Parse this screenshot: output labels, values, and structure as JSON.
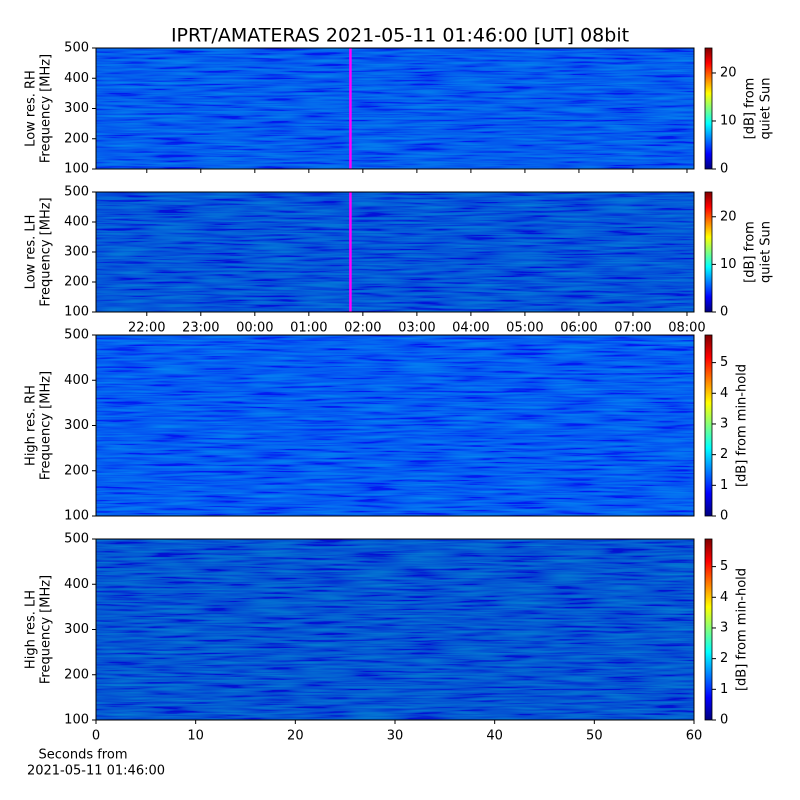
{
  "chart_data": [
    {
      "type": "heatmap",
      "title": "IPRT/AMATERAS 2021-05-11 01:46:00 [UT]   08bit",
      "ylabel": [
        "Low res. RH",
        "Frequency [MHz]"
      ],
      "ylim": [
        100,
        500
      ],
      "yticks": [
        100,
        200,
        300,
        400,
        500
      ],
      "xlim": [
        21.06,
        32.13
      ],
      "xticks": [
        {
          "value": 22,
          "label": "22:00"
        },
        {
          "value": 23,
          "label": "23:00"
        },
        {
          "value": 24,
          "label": "00:00"
        },
        {
          "value": 25,
          "label": "01:00"
        },
        {
          "value": 26,
          "label": "02:00"
        },
        {
          "value": 27,
          "label": "03:00"
        },
        {
          "value": 28,
          "label": "04:00"
        },
        {
          "value": 29,
          "label": "05:00"
        },
        {
          "value": 30,
          "label": "06:00"
        },
        {
          "value": 31,
          "label": "07:00"
        },
        {
          "value": 32,
          "label": "08:00"
        }
      ],
      "show_xtick_labels": false,
      "color": "#0a3ad8",
      "marker": {
        "value": 25.77,
        "color": "#ff00ff"
      },
      "colorbar": {
        "label": [
          "[dB] from",
          "quiet Sun"
        ],
        "lim": [
          0,
          25.2
        ],
        "ticks": [
          0,
          10,
          20
        ]
      },
      "colormap": [
        "#00007f",
        "#0000ff",
        "#007fff",
        "#00ffff",
        "#7fff7f",
        "#ffff00",
        "#ff7f00",
        "#ff0000",
        "#7f0000"
      ]
    },
    {
      "type": "heatmap",
      "ylabel": [
        "Low res. LH",
        "Frequency [MHz]"
      ],
      "ylim": [
        100,
        500
      ],
      "yticks": [
        100,
        200,
        300,
        400,
        500
      ],
      "xlim": [
        21.06,
        32.13
      ],
      "xticks": [
        {
          "value": 22,
          "label": "22:00"
        },
        {
          "value": 23,
          "label": "23:00"
        },
        {
          "value": 24,
          "label": "00:00"
        },
        {
          "value": 25,
          "label": "01:00"
        },
        {
          "value": 26,
          "label": "02:00"
        },
        {
          "value": 27,
          "label": "03:00"
        },
        {
          "value": 28,
          "label": "04:00"
        },
        {
          "value": 29,
          "label": "05:00"
        },
        {
          "value": 30,
          "label": "06:00"
        },
        {
          "value": 31,
          "label": "07:00"
        },
        {
          "value": 32,
          "label": "08:00"
        }
      ],
      "show_xtick_labels": true,
      "color": "#0a2aa8",
      "marker": {
        "value": 25.77,
        "color": "#ff00ff"
      },
      "colorbar": {
        "label": [
          "[dB] from",
          "quiet Sun"
        ],
        "lim": [
          0,
          25.2
        ],
        "ticks": [
          0,
          10,
          20
        ]
      },
      "colormap": [
        "#00007f",
        "#0000ff",
        "#007fff",
        "#00ffff",
        "#7fff7f",
        "#ffff00",
        "#ff7f00",
        "#ff0000",
        "#7f0000"
      ]
    },
    {
      "type": "heatmap",
      "ylabel": [
        "High res. RH",
        "Frequency [MHz]"
      ],
      "ylim": [
        100,
        500
      ],
      "yticks": [
        100,
        200,
        300,
        400,
        500
      ],
      "xlim": [
        0,
        60
      ],
      "color": "#0a3ae0",
      "colorbar": {
        "label": [
          "[dB] from min-hold"
        ],
        "lim": [
          0,
          5.9
        ],
        "ticks": [
          0,
          1,
          2,
          3,
          4,
          5
        ]
      },
      "colormap": [
        "#00007f",
        "#0000ff",
        "#007fff",
        "#00ffff",
        "#7fff7f",
        "#ffff00",
        "#ff7f00",
        "#ff0000",
        "#7f0000"
      ]
    },
    {
      "type": "heatmap",
      "ylabel": [
        "High res. LH",
        "Frequency [MHz]"
      ],
      "ylim": [
        100,
        500
      ],
      "yticks": [
        100,
        200,
        300,
        400,
        500
      ],
      "xlim": [
        0,
        60
      ],
      "xticks": [
        0,
        10,
        20,
        30,
        40,
        50,
        60
      ],
      "show_xtick_labels": true,
      "color": "#0a2a9c",
      "xlabel": [
        "Seconds from",
        "2021-05-11 01:46:00"
      ],
      "colorbar": {
        "label": [
          "[dB] from min-hold"
        ],
        "lim": [
          0,
          5.9
        ],
        "ticks": [
          0,
          1,
          2,
          3,
          4,
          5
        ]
      },
      "colormap": [
        "#00007f",
        "#0000ff",
        "#007fff",
        "#00ffff",
        "#7fff7f",
        "#ffff00",
        "#ff7f00",
        "#ff0000",
        "#7f0000"
      ]
    }
  ]
}
